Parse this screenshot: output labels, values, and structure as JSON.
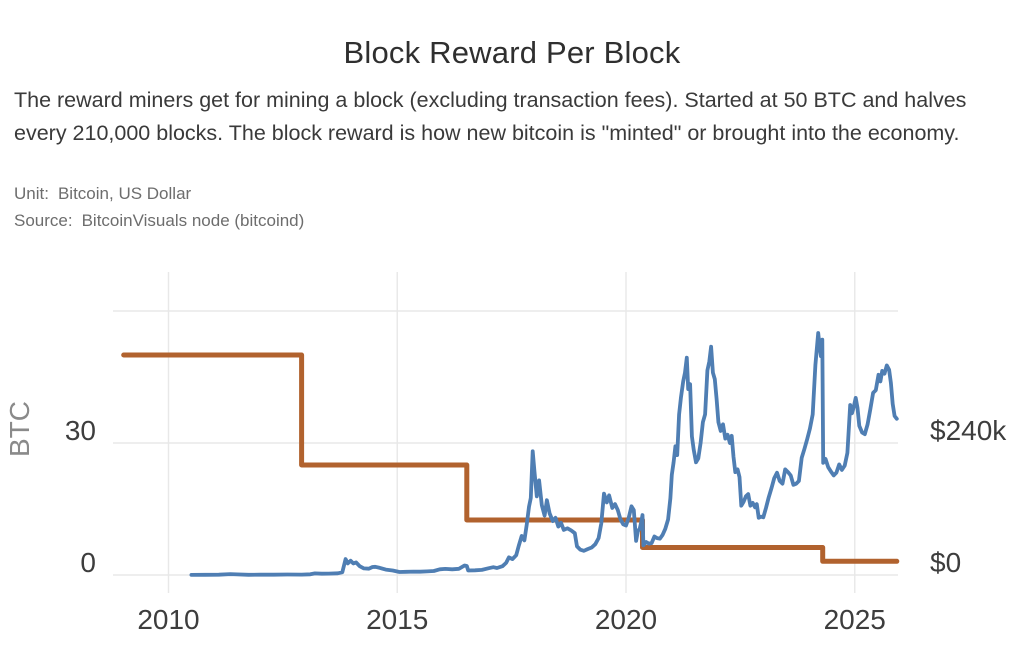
{
  "header": {
    "title": "Block Reward Per Block",
    "description": "The reward miners get for mining a block (excluding transaction fees). Started at 50 BTC and halves every 210,000 blocks. The block reward is how new bitcoin is \"minted\" or brought into the economy."
  },
  "meta": {
    "unit_label": "Unit:",
    "unit_value": "Bitcoin, US Dollar",
    "source_label": "Source:",
    "source_value": "BitcoinVisuals node (bitcoind)"
  },
  "colors": {
    "btc_reward_line": "#b1622e",
    "usd_value_line": "#4f7eb3",
    "gridline": "#e8e8e8",
    "tick_text": "#3d3d3d",
    "axis_unit_text": "#8a8a8a"
  },
  "chart_data": {
    "type": "line",
    "title": "Block Reward Per Block",
    "grid": true,
    "legend": "none",
    "x_axis": {
      "range_years": [
        2008.8,
        2026.0
      ],
      "ticks": [
        {
          "value": 2010,
          "label": "2010"
        },
        {
          "value": 2015,
          "label": "2015"
        },
        {
          "value": 2020,
          "label": "2020"
        },
        {
          "value": 2025,
          "label": "2025"
        }
      ]
    },
    "y_axis_left": {
      "label": "BTC",
      "range": [
        0,
        69
      ],
      "ticks": [
        {
          "value": 0,
          "label": "0"
        },
        {
          "value": 30,
          "label": "30"
        },
        {
          "value": 60,
          "label": ""
        }
      ]
    },
    "y_axis_right": {
      "unit": "US Dollar (thousands)",
      "range_usd_k": [
        0,
        555
      ],
      "ticks": [
        {
          "value": 0,
          "label": "$0"
        },
        {
          "value": 240,
          "label": "$240k"
        }
      ]
    },
    "series": [
      {
        "name": "Bitcoin",
        "axis": "left",
        "color_key": "btc_reward_line",
        "step": true,
        "points": [
          [
            2009.02,
            50
          ],
          [
            2012.91,
            50
          ],
          [
            2012.91,
            25
          ],
          [
            2016.52,
            25
          ],
          [
            2016.52,
            12.5
          ],
          [
            2020.36,
            12.5
          ],
          [
            2020.36,
            6.25
          ],
          [
            2024.3,
            6.25
          ],
          [
            2024.3,
            3.125
          ],
          [
            2025.92,
            3.125
          ]
        ]
      },
      {
        "name": "US Dollar",
        "axis": "right",
        "color_key": "usd_value_line",
        "step": false,
        "points": [
          [
            2010.5,
            0.2
          ],
          [
            2010.8,
            0.3
          ],
          [
            2011.1,
            0.5
          ],
          [
            2011.35,
            1.6
          ],
          [
            2011.5,
            1.0
          ],
          [
            2011.75,
            0.4
          ],
          [
            2012.0,
            0.5
          ],
          [
            2012.3,
            0.6
          ],
          [
            2012.6,
            0.9
          ],
          [
            2012.91,
            0.8
          ],
          [
            2013.1,
            1.2
          ],
          [
            2013.2,
            2.9
          ],
          [
            2013.35,
            2.4
          ],
          [
            2013.5,
            2.6
          ],
          [
            2013.7,
            3.1
          ],
          [
            2013.8,
            5
          ],
          [
            2013.87,
            29
          ],
          [
            2013.92,
            21
          ],
          [
            2013.98,
            26
          ],
          [
            2014.04,
            21
          ],
          [
            2014.1,
            23
          ],
          [
            2014.18,
            16
          ],
          [
            2014.27,
            12
          ],
          [
            2014.38,
            11.5
          ],
          [
            2014.46,
            14.5
          ],
          [
            2014.52,
            15
          ],
          [
            2014.62,
            13
          ],
          [
            2014.75,
            9.8
          ],
          [
            2014.9,
            8.2
          ],
          [
            2015.05,
            5.4
          ],
          [
            2015.2,
            5.9
          ],
          [
            2015.35,
            6.2
          ],
          [
            2015.5,
            6.0
          ],
          [
            2015.65,
            6.6
          ],
          [
            2015.8,
            7.2
          ],
          [
            2015.93,
            10.3
          ],
          [
            2016.05,
            11
          ],
          [
            2016.2,
            10.4
          ],
          [
            2016.35,
            11.2
          ],
          [
            2016.47,
            17.2
          ],
          [
            2016.52,
            16.3
          ],
          [
            2016.55,
            8.2
          ],
          [
            2016.7,
            8.6
          ],
          [
            2016.85,
            9.2
          ],
          [
            2017.0,
            12.4
          ],
          [
            2017.1,
            14.2
          ],
          [
            2017.18,
            12.8
          ],
          [
            2017.3,
            16
          ],
          [
            2017.38,
            22
          ],
          [
            2017.44,
            32
          ],
          [
            2017.52,
            29
          ],
          [
            2017.6,
            36
          ],
          [
            2017.66,
            54
          ],
          [
            2017.72,
            71
          ],
          [
            2017.78,
            63
          ],
          [
            2017.83,
            91
          ],
          [
            2017.88,
            124
          ],
          [
            2017.92,
            140
          ],
          [
            2017.96,
            225
          ],
          [
            2018.0,
            187
          ],
          [
            2018.05,
            143
          ],
          [
            2018.1,
            172
          ],
          [
            2018.16,
            127
          ],
          [
            2018.22,
            108
          ],
          [
            2018.27,
            136
          ],
          [
            2018.33,
            112
          ],
          [
            2018.4,
            98
          ],
          [
            2018.46,
            104
          ],
          [
            2018.52,
            88
          ],
          [
            2018.58,
            95
          ],
          [
            2018.64,
            82
          ],
          [
            2018.72,
            85
          ],
          [
            2018.8,
            81
          ],
          [
            2018.88,
            76
          ],
          [
            2018.93,
            52
          ],
          [
            2019.0,
            46
          ],
          [
            2019.08,
            44
          ],
          [
            2019.16,
            47
          ],
          [
            2019.25,
            50
          ],
          [
            2019.33,
            56
          ],
          [
            2019.4,
            67
          ],
          [
            2019.46,
            94
          ],
          [
            2019.52,
            148
          ],
          [
            2019.58,
            132
          ],
          [
            2019.63,
            145
          ],
          [
            2019.7,
            122
          ],
          [
            2019.76,
            129
          ],
          [
            2019.82,
            118
          ],
          [
            2019.88,
            101
          ],
          [
            2019.94,
            92
          ],
          [
            2020.0,
            90
          ],
          [
            2020.06,
            104
          ],
          [
            2020.12,
            125
          ],
          [
            2020.17,
            118
          ],
          [
            2020.22,
            62
          ],
          [
            2020.26,
            80
          ],
          [
            2020.3,
            84
          ],
          [
            2020.33,
            95
          ],
          [
            2020.36,
            109
          ],
          [
            2020.38,
            54
          ],
          [
            2020.44,
            60
          ],
          [
            2020.5,
            57
          ],
          [
            2020.56,
            58
          ],
          [
            2020.62,
            70
          ],
          [
            2020.68,
            67
          ],
          [
            2020.74,
            66
          ],
          [
            2020.8,
            73
          ],
          [
            2020.86,
            84
          ],
          [
            2020.92,
            101
          ],
          [
            2020.97,
            140
          ],
          [
            2021.0,
            182
          ],
          [
            2021.04,
            205
          ],
          [
            2021.08,
            234
          ],
          [
            2021.12,
            218
          ],
          [
            2021.16,
            292
          ],
          [
            2021.2,
            322
          ],
          [
            2021.25,
            352
          ],
          [
            2021.29,
            368
          ],
          [
            2021.33,
            395
          ],
          [
            2021.36,
            338
          ],
          [
            2021.4,
            347
          ],
          [
            2021.44,
            252
          ],
          [
            2021.48,
            228
          ],
          [
            2021.53,
            205
          ],
          [
            2021.58,
            212
          ],
          [
            2021.63,
            240
          ],
          [
            2021.68,
            278
          ],
          [
            2021.73,
            292
          ],
          [
            2021.78,
            372
          ],
          [
            2021.82,
            388
          ],
          [
            2021.86,
            415
          ],
          [
            2021.9,
            368
          ],
          [
            2021.94,
            356
          ],
          [
            2021.98,
            320
          ],
          [
            2022.02,
            278
          ],
          [
            2022.07,
            262
          ],
          [
            2022.12,
            274
          ],
          [
            2022.17,
            248
          ],
          [
            2022.22,
            255
          ],
          [
            2022.27,
            240
          ],
          [
            2022.31,
            253
          ],
          [
            2022.35,
            215
          ],
          [
            2022.39,
            187
          ],
          [
            2022.44,
            192
          ],
          [
            2022.48,
            178
          ],
          [
            2022.52,
            126
          ],
          [
            2022.57,
            133
          ],
          [
            2022.62,
            143
          ],
          [
            2022.67,
            147
          ],
          [
            2022.72,
            126
          ],
          [
            2022.77,
            131
          ],
          [
            2022.82,
            123
          ],
          [
            2022.86,
            129
          ],
          [
            2022.9,
            104
          ],
          [
            2022.95,
            106
          ],
          [
            2023.0,
            105
          ],
          [
            2023.06,
            122
          ],
          [
            2023.12,
            141
          ],
          [
            2023.18,
            158
          ],
          [
            2023.24,
            176
          ],
          [
            2023.3,
            186
          ],
          [
            2023.36,
            171
          ],
          [
            2023.42,
            166
          ],
          [
            2023.48,
            192
          ],
          [
            2023.54,
            187
          ],
          [
            2023.6,
            181
          ],
          [
            2023.66,
            164
          ],
          [
            2023.72,
            166
          ],
          [
            2023.78,
            171
          ],
          [
            2023.84,
            213
          ],
          [
            2023.9,
            229
          ],
          [
            2023.96,
            247
          ],
          [
            2024.02,
            266
          ],
          [
            2024.08,
            292
          ],
          [
            2024.14,
            382
          ],
          [
            2024.2,
            440
          ],
          [
            2024.23,
            418
          ],
          [
            2024.26,
            398
          ],
          [
            2024.29,
            428
          ],
          [
            2024.31,
            204
          ],
          [
            2024.36,
            211
          ],
          [
            2024.42,
            196
          ],
          [
            2024.48,
            188
          ],
          [
            2024.54,
            181
          ],
          [
            2024.6,
            186
          ],
          [
            2024.66,
            201
          ],
          [
            2024.72,
            191
          ],
          [
            2024.78,
            199
          ],
          [
            2024.84,
            222
          ],
          [
            2024.9,
            309
          ],
          [
            2024.94,
            294
          ],
          [
            2024.98,
            306
          ],
          [
            2025.02,
            322
          ],
          [
            2025.06,
            304
          ],
          [
            2025.1,
            271
          ],
          [
            2025.16,
            259
          ],
          [
            2025.22,
            256
          ],
          [
            2025.28,
            274
          ],
          [
            2025.34,
            301
          ],
          [
            2025.4,
            331
          ],
          [
            2025.46,
            336
          ],
          [
            2025.52,
            364
          ],
          [
            2025.56,
            352
          ],
          [
            2025.6,
            371
          ],
          [
            2025.65,
            366
          ],
          [
            2025.7,
            381
          ],
          [
            2025.75,
            373
          ],
          [
            2025.79,
            349
          ],
          [
            2025.83,
            311
          ],
          [
            2025.87,
            289
          ],
          [
            2025.92,
            284
          ]
        ]
      }
    ]
  }
}
